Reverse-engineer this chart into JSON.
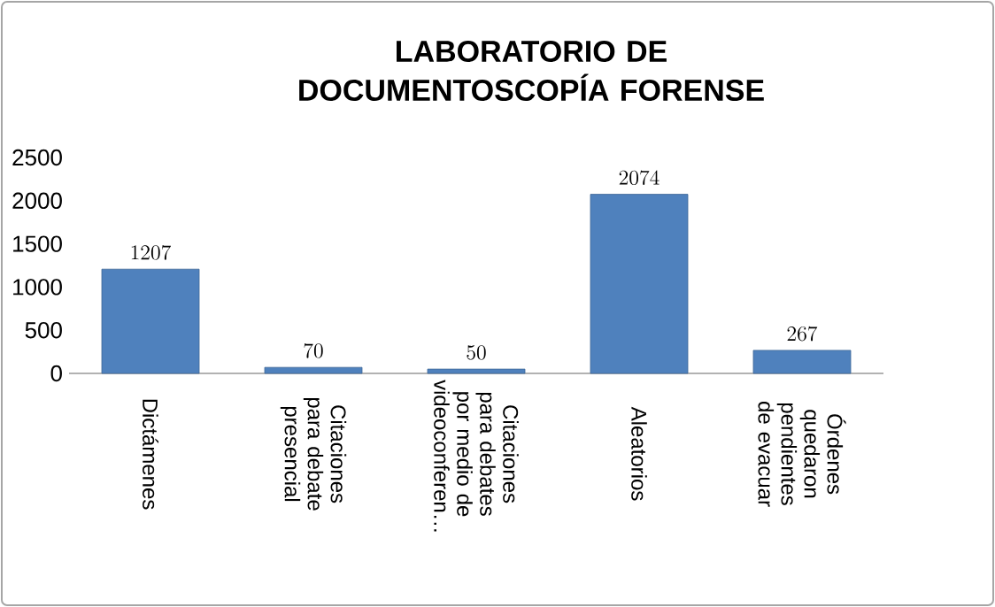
{
  "chart_data": {
    "type": "bar",
    "title": "LABORATORIO DE DOCUMENTOSCOPÍA FORENSE",
    "categories": [
      "Dictámenes",
      "Citaciones para debate presencial",
      "Citaciones para debates por medio de videoconferen…",
      "Aleatorios",
      "Órdenes quedaron pendientes de evacuar"
    ],
    "values": [
      1207,
      70,
      50,
      2074,
      267
    ],
    "color": "#4f81bd",
    "ylim": [
      0,
      2500
    ],
    "yticks": [
      0,
      500,
      1000,
      1500,
      2000,
      2500
    ],
    "grid": false,
    "data_labels": true
  }
}
